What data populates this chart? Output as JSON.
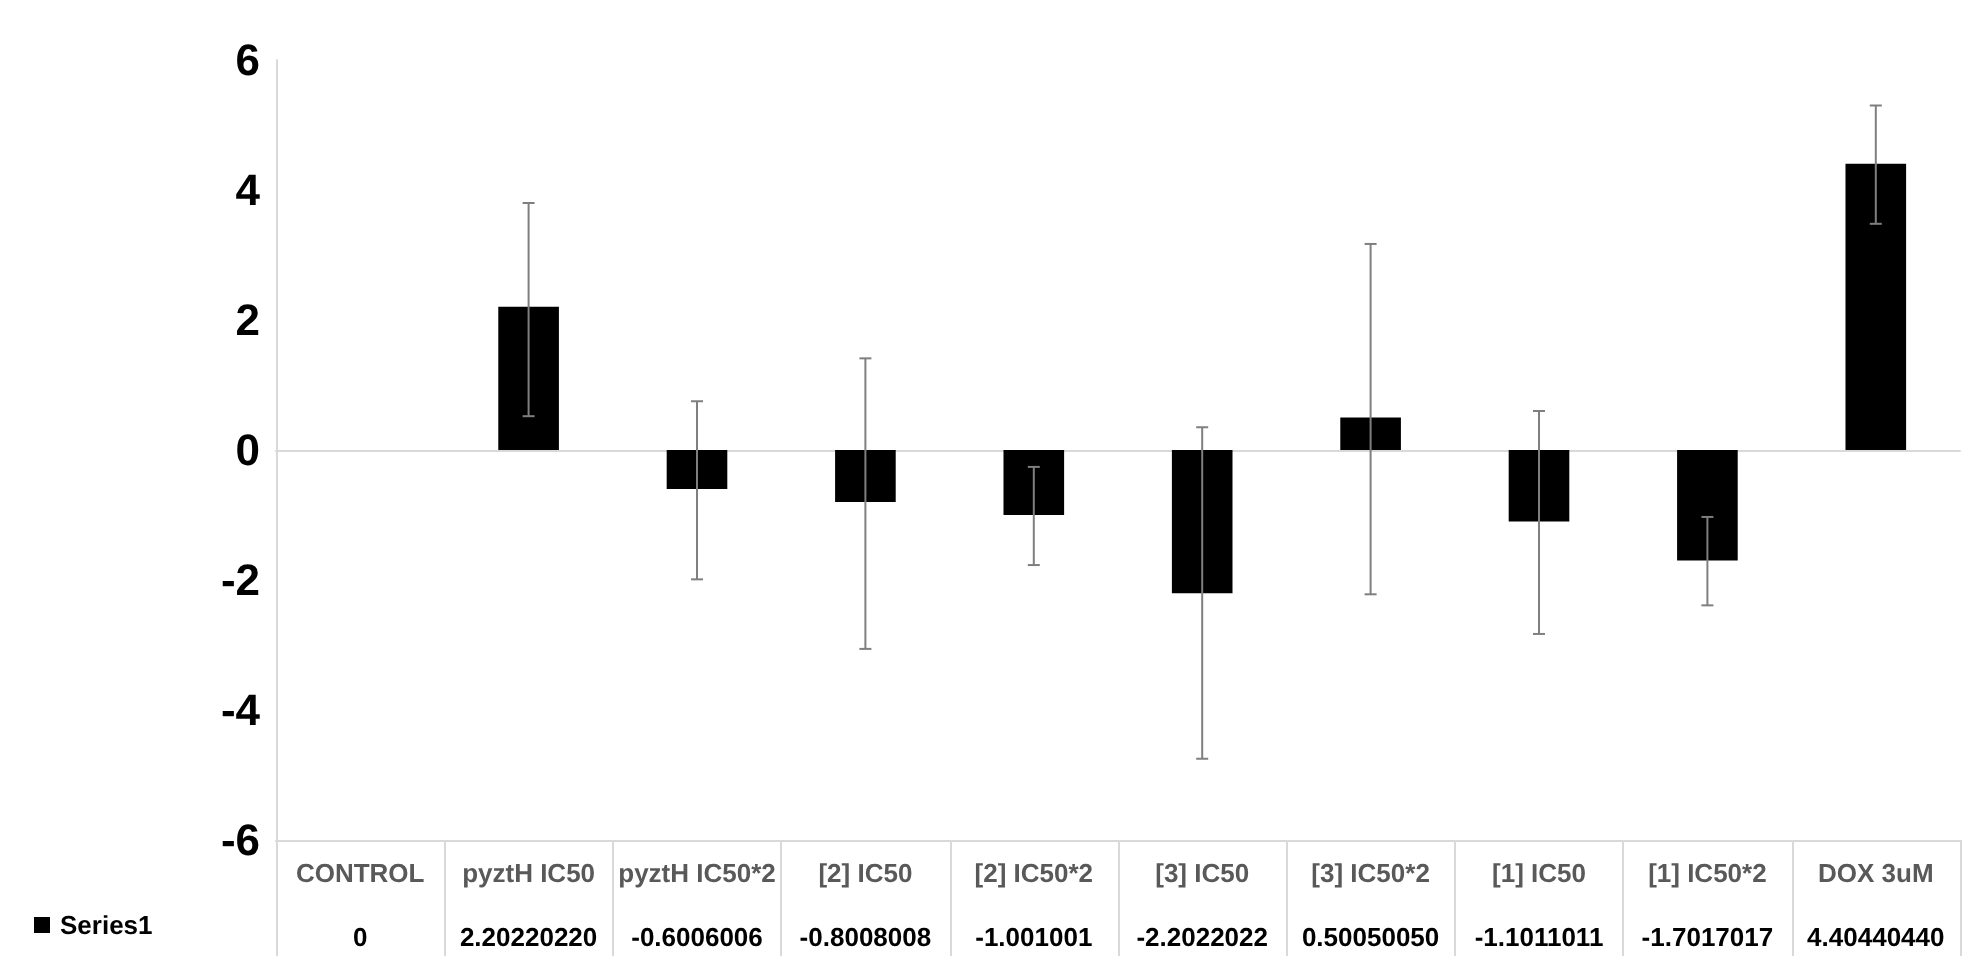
{
  "chart_data": {
    "type": "bar",
    "categories": [
      "CONTROL",
      "pyztH IC50",
      "pyztH IC50*2",
      "[2] IC50",
      "[2] IC50*2",
      "[3] IC50",
      "[3] IC50*2",
      "[1] IC50",
      "[1] IC50*2",
      "DOX 3uM"
    ],
    "series": [
      {
        "name": "Series1",
        "color": "#000000",
        "values": [
          0,
          2.2022022,
          -0.6006006,
          -0.8008008,
          -1.001001,
          -2.2022022,
          0.5005005,
          -1.1011011,
          -1.7017017,
          4.4044044
        ],
        "value_labels": [
          "0",
          "2.20220220",
          "-0.6006006",
          "-0.8008008",
          "-1.001001",
          "-2.2022022",
          "0.50050050",
          "-1.1011011",
          "-1.7017017",
          "4.40440440"
        ],
        "errors": [
          null,
          [
            0.52,
            3.8
          ],
          [
            -1.99,
            0.75
          ],
          [
            -3.06,
            1.41
          ],
          [
            -1.77,
            -0.26
          ],
          [
            -4.75,
            0.35
          ],
          [
            -2.22,
            3.17
          ],
          [
            -2.83,
            0.6
          ],
          [
            -2.39,
            -1.03
          ],
          [
            3.48,
            5.3
          ]
        ]
      }
    ],
    "ylim": [
      -6,
      6
    ],
    "yticks": [
      -6,
      -4,
      -2,
      0,
      2,
      4,
      6
    ],
    "legend": "bottom left"
  }
}
